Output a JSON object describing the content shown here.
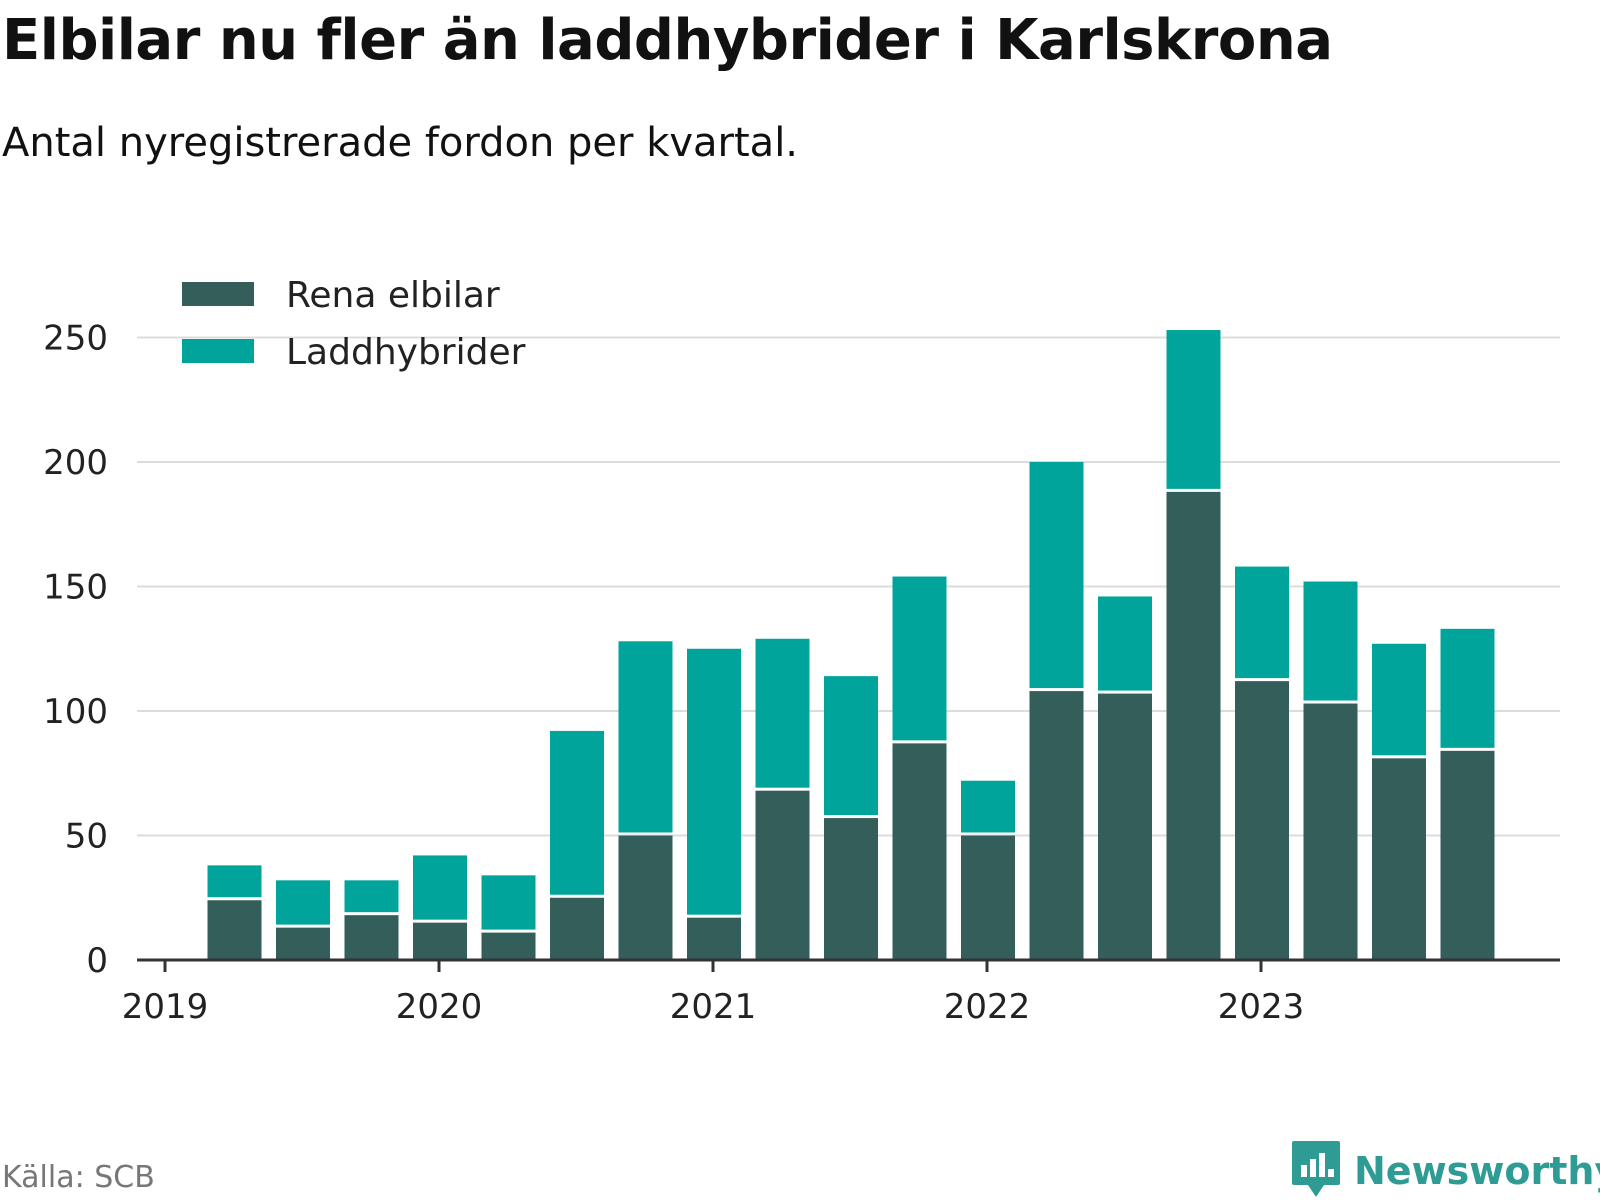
{
  "title": "Elbilar nu fler än laddhybrider i Karlskrona",
  "subtitle": "Antal nyregistrerade fordon per kvartal.",
  "source": "Källa: SCB",
  "brand": {
    "name": "Newsworthy",
    "icon": "newsworthy-logo-icon"
  },
  "colors": {
    "rena_elbilar": "#335e5a",
    "laddhybrider": "#00a49a",
    "grid": "#dcdcdc",
    "axis": "#333333",
    "brand": "#2e9c94"
  },
  "chart_data": {
    "type": "bar",
    "stacked": true,
    "categories": [
      "2019 Q2",
      "2019 Q3",
      "2019 Q4",
      "2020 Q1",
      "2020 Q2",
      "2020 Q3",
      "2020 Q4",
      "2021 Q1",
      "2021 Q2",
      "2021 Q3",
      "2021 Q4",
      "2022 Q1",
      "2022 Q2",
      "2022 Q3",
      "2022 Q4",
      "2023 Q1",
      "2023 Q2",
      "2023 Q3",
      "2023 Q4"
    ],
    "series": [
      {
        "name": "Rena elbilar",
        "color": "#335e5a",
        "values": [
          24,
          13,
          18,
          15,
          11,
          25,
          50,
          17,
          68,
          57,
          87,
          50,
          108,
          107,
          188,
          112,
          103,
          81,
          84
        ]
      },
      {
        "name": "Laddhybrider",
        "color": "#00a49a",
        "values": [
          14,
          19,
          14,
          27,
          23,
          67,
          78,
          108,
          61,
          57,
          67,
          22,
          92,
          39,
          65,
          46,
          49,
          46,
          49
        ]
      }
    ],
    "x_axis": {
      "ticks": [
        "2019",
        "2020",
        "2021",
        "2022",
        "2023"
      ]
    },
    "y_axis": {
      "ticks": [
        0,
        50,
        100,
        150,
        200,
        250
      ],
      "range": [
        0,
        260
      ]
    },
    "legend": {
      "position": "top-left",
      "entries": [
        "Rena elbilar",
        "Laddhybrider"
      ]
    },
    "grid": true
  }
}
